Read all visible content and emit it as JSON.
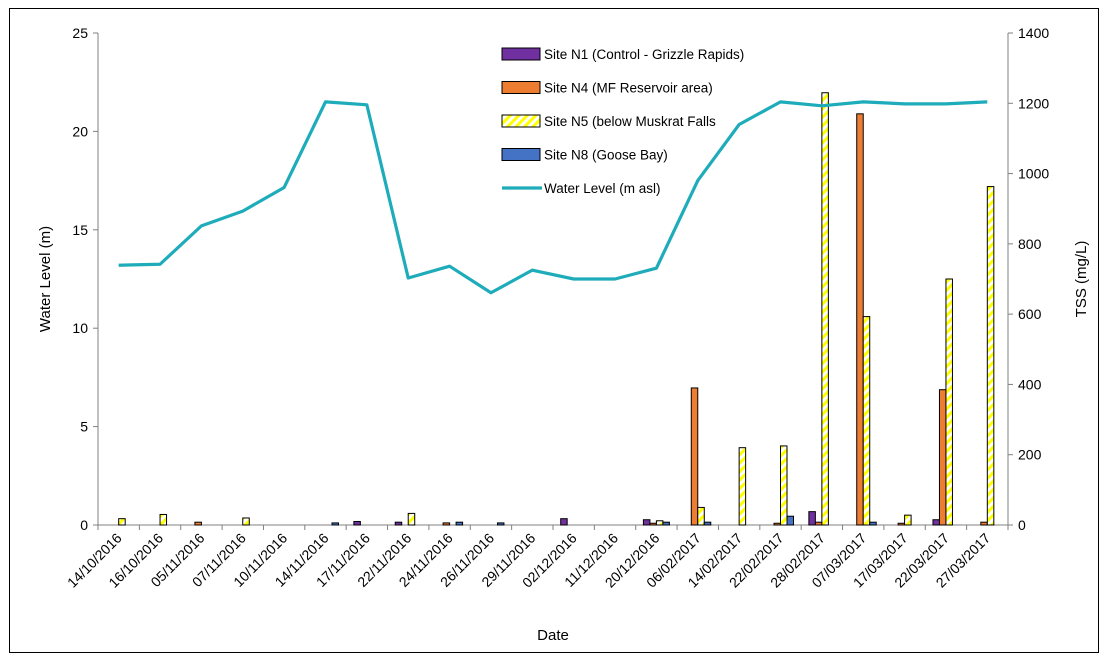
{
  "chart_data": {
    "type": "bar",
    "xlabel": "Date",
    "ylabel_left": "Water Level (m)",
    "ylabel_right": "TSS (mg/L)",
    "ylim_left": [
      0,
      25
    ],
    "ylim_right": [
      0,
      1400
    ],
    "yticks_left": [
      "0",
      "5",
      "10",
      "15",
      "20",
      "25"
    ],
    "yticks_right": [
      "0",
      "200",
      "400",
      "600",
      "800",
      "1000",
      "1200",
      "1400"
    ],
    "grid": false,
    "legend_position": "top-center",
    "categories": [
      "14/10/2016",
      "16/10/2016",
      "05/11/2016",
      "07/11/2016",
      "10/11/2016",
      "14/11/2016",
      "17/11/2016",
      "22/11/2016",
      "24/11/2016",
      "26/11/2016",
      "29/11/2016",
      "02/12/2016",
      "11/12/2016",
      "20/12/2016",
      "06/02/2017",
      "14/02/2017",
      "22/02/2017",
      "28/02/2017",
      "07/03/2017",
      "17/03/2017",
      "22/03/2017",
      "27/03/2017"
    ],
    "series": [
      {
        "name": "Site N1 (Control - Grizzle Rapids)",
        "kind": "bar",
        "axis": "right",
        "color": "#7030a0",
        "values": [
          0,
          0,
          0,
          0,
          0,
          0,
          10,
          8,
          0,
          0,
          0,
          18,
          0,
          15,
          0,
          0,
          0,
          38,
          0,
          0,
          15,
          0
        ]
      },
      {
        "name": "Site N4 (MF Reservoir area)",
        "kind": "bar",
        "axis": "right",
        "color": "#ed7d31",
        "values": [
          0,
          0,
          8,
          0,
          0,
          0,
          0,
          0,
          6,
          0,
          0,
          0,
          0,
          5,
          390,
          0,
          5,
          8,
          1170,
          5,
          385,
          8
        ]
      },
      {
        "name": "Site N5 (below Muskrat Falls",
        "kind": "bar",
        "axis": "right",
        "color": "#ffff00",
        "pattern": "hatched",
        "values": [
          18,
          30,
          0,
          20,
          0,
          0,
          0,
          33,
          0,
          0,
          0,
          0,
          0,
          12,
          50,
          220,
          225,
          1230,
          593,
          28,
          700,
          963
        ]
      },
      {
        "name": "Site N8 (Goose Bay)",
        "kind": "bar",
        "axis": "right",
        "color": "#4472c4",
        "values": [
          0,
          0,
          0,
          0,
          0,
          6,
          0,
          0,
          8,
          6,
          0,
          0,
          0,
          8,
          8,
          0,
          25,
          0,
          8,
          0,
          0,
          0
        ]
      },
      {
        "name": "Water Level (m asl)",
        "kind": "line",
        "axis": "left",
        "color": "#1eacbb",
        "values": [
          13.2,
          13.25,
          15.2,
          15.95,
          17.15,
          21.5,
          21.35,
          12.55,
          13.15,
          11.8,
          12.95,
          12.5,
          12.5,
          13.05,
          17.5,
          20.35,
          21.5,
          21.3,
          21.5,
          21.4,
          21.4,
          21.5
        ]
      }
    ]
  }
}
